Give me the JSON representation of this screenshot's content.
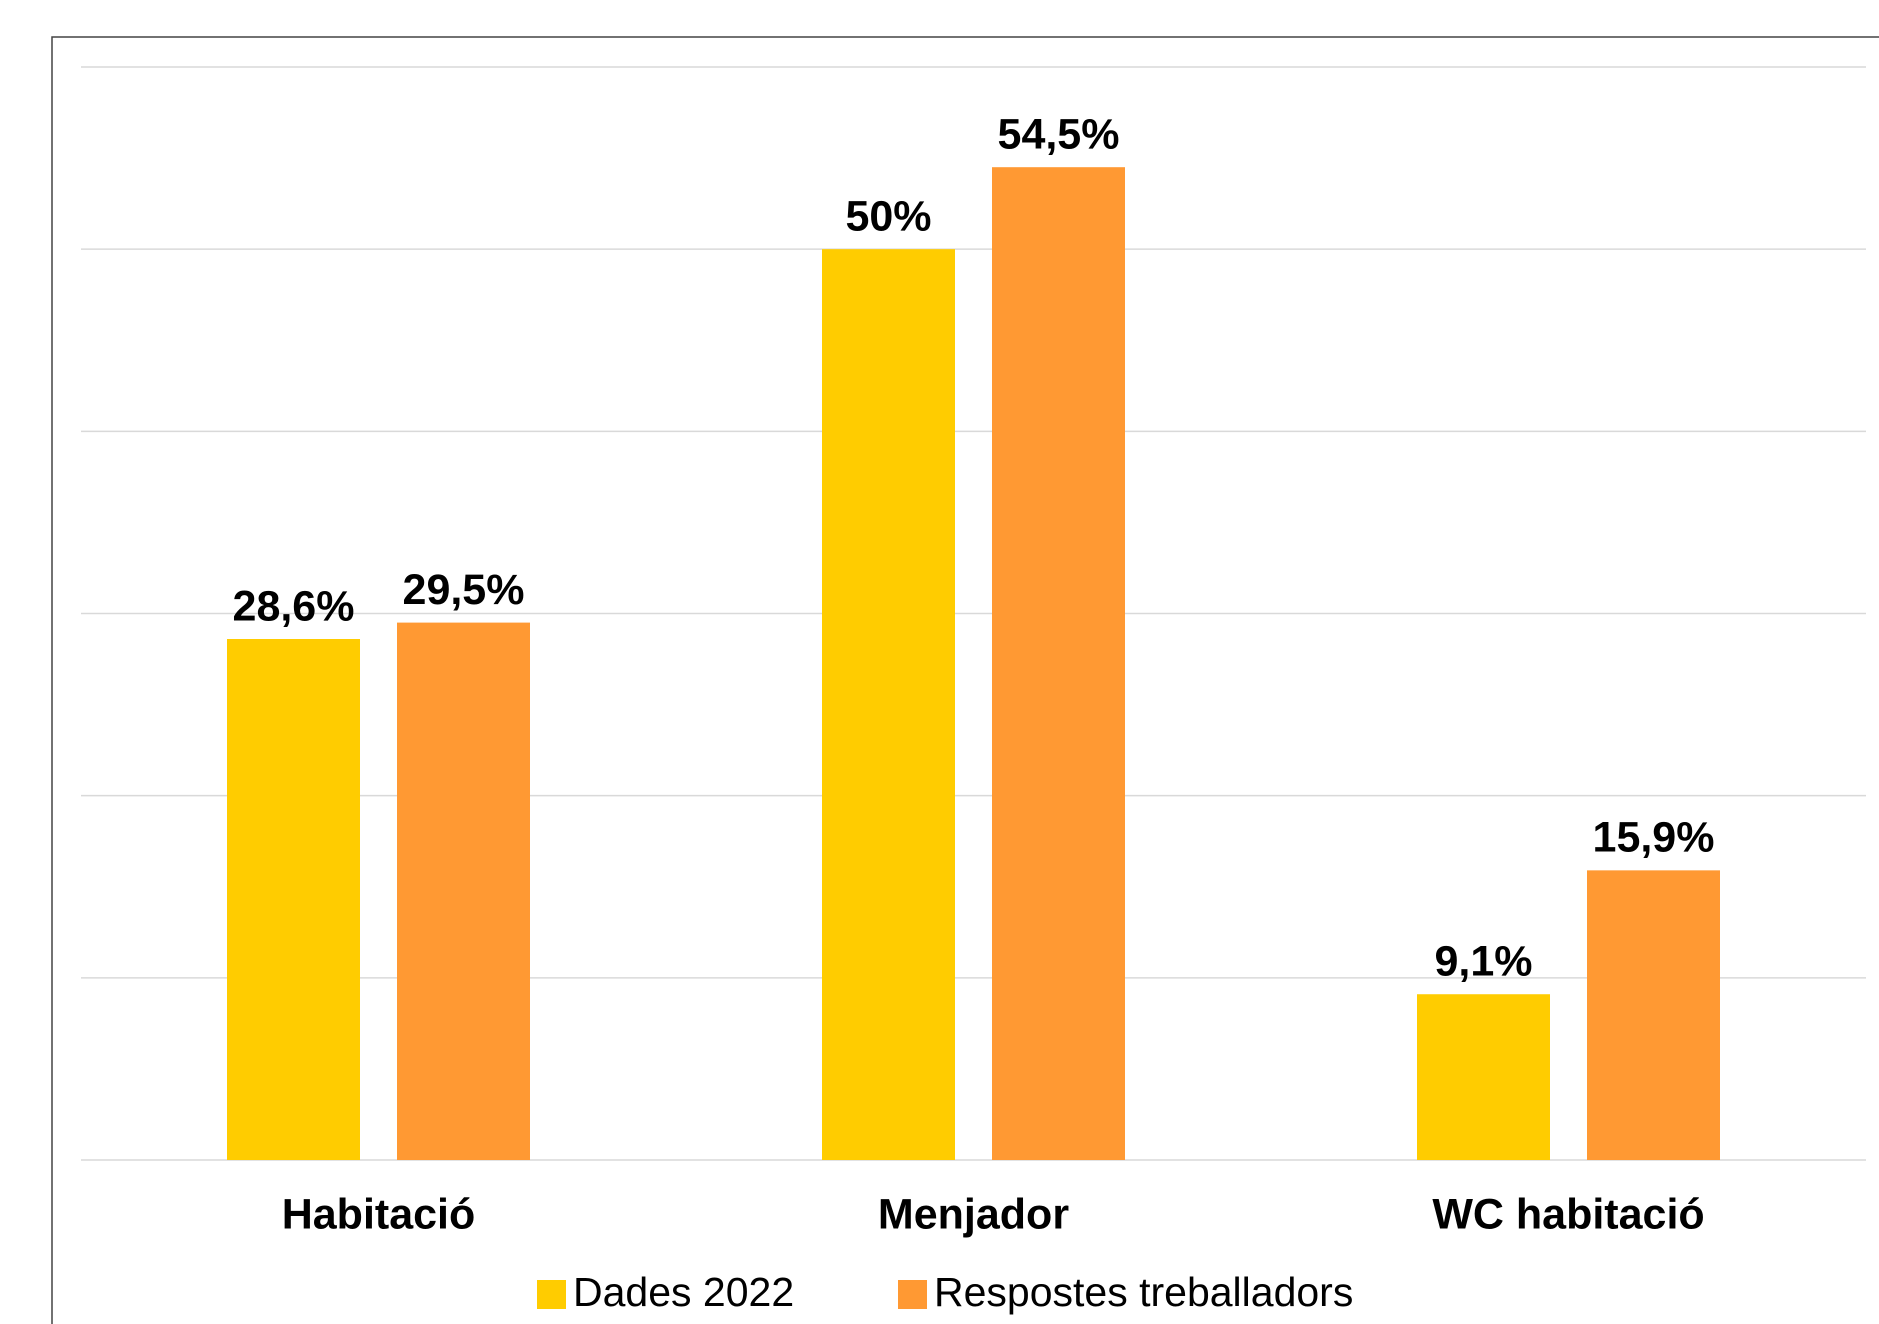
{
  "chart_data": {
    "type": "bar",
    "categories": [
      "Habitació",
      "Menjador",
      "WC habitació"
    ],
    "series": [
      {
        "name": "Dades 2022",
        "color": "#ffcc00",
        "values": [
          28.6,
          50,
          9.1
        ],
        "value_labels": [
          "28,6%",
          "50%",
          "9,1%"
        ]
      },
      {
        "name": "Respostes treballadors",
        "color": "#ff9933",
        "values": [
          29.5,
          54.5,
          15.9
        ],
        "value_labels": [
          "29,5%",
          "54,5%",
          "15,9%"
        ]
      }
    ],
    "ylim": [
      0,
      60
    ],
    "yticks": [
      0,
      10,
      20,
      30,
      40,
      50,
      60
    ],
    "grid": true,
    "legend": "bottom"
  }
}
